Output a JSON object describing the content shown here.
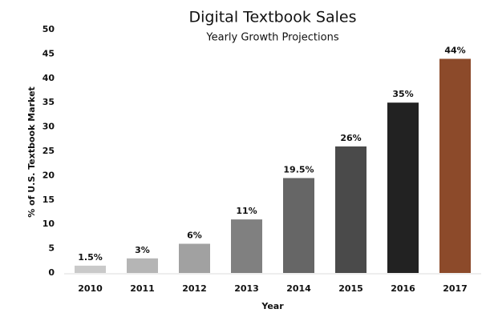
{
  "chart_data": {
    "type": "bar",
    "title": "Digital Textbook Sales",
    "subtitle": "Yearly Growth Projections",
    "x_label": "Year",
    "y_label": "% of U.S. Textbook Market",
    "categories": [
      "2010",
      "2011",
      "2012",
      "2013",
      "2014",
      "2015",
      "2016",
      "2017"
    ],
    "values": [
      1.5,
      3,
      6,
      11,
      19.5,
      26,
      35,
      44
    ],
    "value_labels": [
      "1.5%",
      "3%",
      "6%",
      "11%",
      "19.5%",
      "26%",
      "35%",
      "44%"
    ],
    "colors": [
      "#c9c9c9",
      "#b5b5b5",
      "#a1a1a1",
      "#808080",
      "#666666",
      "#4a4a4a",
      "#222222",
      "#8c4a2a"
    ],
    "ylim": [
      0,
      50
    ],
    "yticks": [
      0,
      5,
      10,
      15,
      20,
      25,
      30,
      35,
      40,
      45,
      50
    ],
    "grid": false
  }
}
